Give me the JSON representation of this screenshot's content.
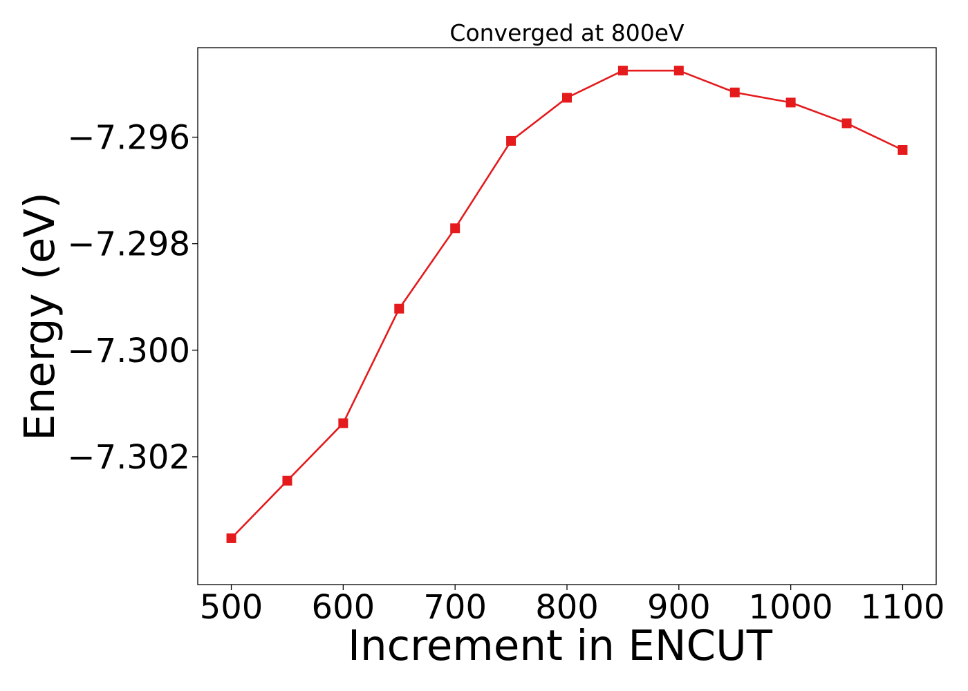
{
  "chart_data": {
    "type": "line",
    "title": "Converged at 800eV",
    "xlabel": "Increment in ENCUT",
    "ylabel": "Energy (eV)",
    "x": [
      500,
      550,
      600,
      650,
      700,
      750,
      800,
      850,
      900,
      950,
      1000,
      1050,
      1100
    ],
    "series": [
      {
        "values": [
          -7.30353,
          -7.30245,
          -7.30137,
          -7.29922,
          -7.29771,
          -7.29607,
          -7.29526,
          -7.29475,
          -7.29475,
          -7.29516,
          -7.29535,
          -7.29574,
          -7.29624
        ],
        "color": "#e41a1c",
        "marker": "square"
      }
    ],
    "xlim": [
      470,
      1130
    ],
    "ylim": [
      -7.3044,
      -7.29432
    ],
    "xticks": [
      500,
      600,
      700,
      800,
      900,
      1000,
      1100
    ],
    "xtick_labels": [
      "500",
      "600",
      "700",
      "800",
      "900",
      "1000",
      "1100"
    ],
    "yticks": [
      -7.302,
      -7.3,
      -7.298,
      -7.296
    ],
    "ytick_labels": [
      "−7.302",
      "−7.300",
      "−7.298",
      "−7.296"
    ],
    "grid": false,
    "legend": "none"
  }
}
